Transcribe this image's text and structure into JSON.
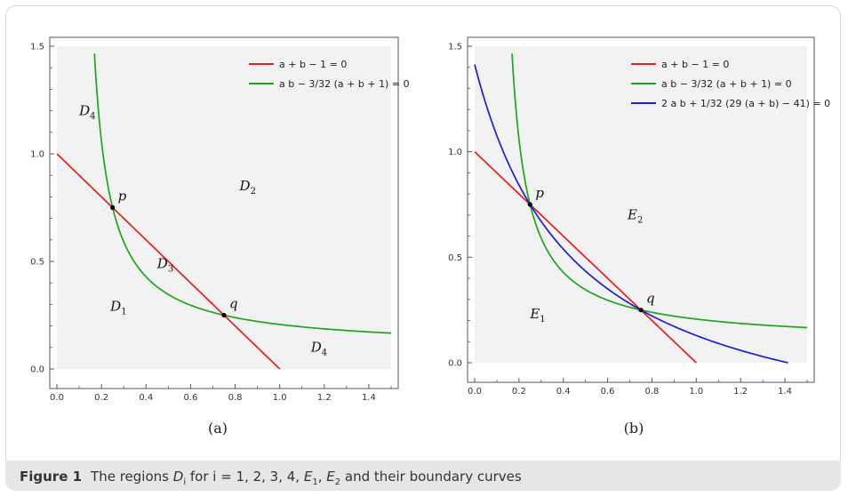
{
  "caption": {
    "figure_label": "Figure 1",
    "text": "The regions D_i for i = 1, 2, 3, 4, E_1, E_2 and their boundary curves"
  },
  "colors": {
    "red": "#e41e1e",
    "green": "#1ea51e",
    "blue": "#1e1ecf",
    "shade": "#f2f2f2",
    "axis": "#555555"
  },
  "chart_data": [
    {
      "type": "line",
      "subplot_label": "(a)",
      "xlim": [
        0,
        1.5
      ],
      "ylim": [
        0,
        1.5
      ],
      "x_ticks": [
        0.0,
        0.2,
        0.4,
        0.6,
        0.8,
        1.0,
        1.2,
        1.4
      ],
      "x_tick_labels": [
        "0.0",
        "0.2",
        "0.4",
        "0.6",
        "0.8",
        "1.0",
        "1.2",
        "1.4"
      ],
      "y_ticks": [
        0.0,
        0.5,
        1.0,
        1.5
      ],
      "y_tick_labels": [
        "0.0",
        "0.5",
        "1.0",
        "1.5"
      ],
      "legend_position": "top-right",
      "series": [
        {
          "name": "a + b − 1 = 0",
          "color": "red",
          "curve": "line",
          "x_range": [
            0,
            1
          ]
        },
        {
          "name": "a b − 3/32 (a + b + 1) = 0",
          "color": "green",
          "curve": "hyperbola",
          "x_range": [
            0.1685,
            1.5
          ]
        }
      ],
      "points": [
        {
          "label": "p",
          "x": 0.25,
          "y": 0.75
        },
        {
          "label": "q",
          "x": 0.75,
          "y": 0.25
        }
      ],
      "region_labels": [
        {
          "label": "D_4",
          "x": 0.1,
          "y": 1.18
        },
        {
          "label": "D_2",
          "x": 0.82,
          "y": 0.83
        },
        {
          "label": "D_3",
          "x": 0.45,
          "y": 0.47
        },
        {
          "label": "D_1",
          "x": 0.24,
          "y": 0.27
        },
        {
          "label": "D_4",
          "x": 1.14,
          "y": 0.08
        }
      ]
    },
    {
      "type": "line",
      "subplot_label": "(b)",
      "xlim": [
        0,
        1.5
      ],
      "ylim": [
        0,
        1.5
      ],
      "x_ticks": [
        0.0,
        0.2,
        0.4,
        0.6,
        0.8,
        1.0,
        1.2,
        1.4
      ],
      "x_tick_labels": [
        "0.0",
        "0.2",
        "0.4",
        "0.6",
        "0.8",
        "1.0",
        "1.2",
        "1.4"
      ],
      "y_ticks": [
        0.0,
        0.5,
        1.0,
        1.5
      ],
      "y_tick_labels": [
        "0.0",
        "0.5",
        "1.0",
        "1.5"
      ],
      "legend_position": "top-right",
      "series": [
        {
          "name": "a + b − 1 = 0",
          "color": "red",
          "curve": "line",
          "x_range": [
            0,
            1
          ]
        },
        {
          "name": "a b − 3/32 (a + b + 1) = 0",
          "color": "green",
          "curve": "hyperbola",
          "x_range": [
            0.1685,
            1.5
          ]
        },
        {
          "name": "2 a b + 1/32 (29 (a + b) − 41) = 0",
          "color": "blue",
          "curve": "hyperbola2",
          "x_range": [
            0,
            1.4138
          ]
        }
      ],
      "points": [
        {
          "label": "p",
          "x": 0.25,
          "y": 0.75
        },
        {
          "label": "q",
          "x": 0.75,
          "y": 0.25
        }
      ],
      "region_labels": [
        {
          "label": "E_2",
          "x": 0.69,
          "y": 0.68
        },
        {
          "label": "E_1",
          "x": 0.25,
          "y": 0.21
        }
      ]
    }
  ]
}
